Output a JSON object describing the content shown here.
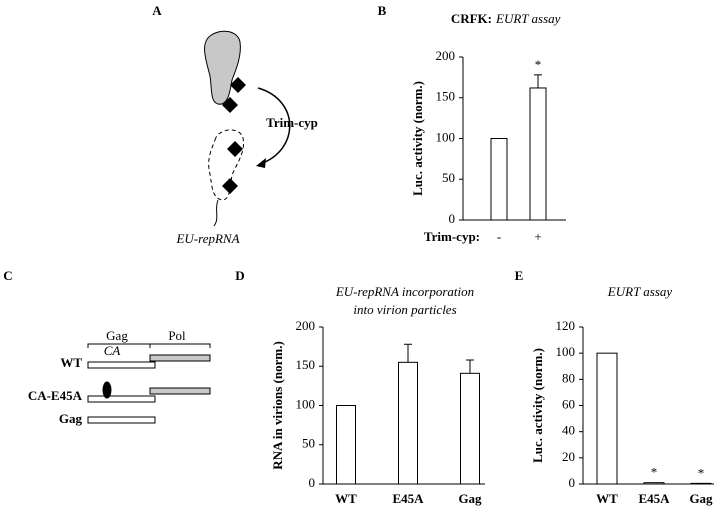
{
  "panel_labels": [
    "A",
    "B",
    "C",
    "D",
    "E"
  ],
  "diagram_a": {
    "arrow_label": "Trim-cyp",
    "rna_label": "EU-repRNA"
  },
  "diagram_c": {
    "gag_bracket": "Gag",
    "pol_bracket": "Pol",
    "ca_label": "CA",
    "rows": [
      "WT",
      "CA-E45A",
      "Gag"
    ]
  },
  "chart_data": [
    {
      "type": "bar",
      "title": "CRFK:",
      "subtitle": "EURT assay",
      "y_label": "Luc. activity (norm.)",
      "x_label": "Trim-cyp:",
      "categories": [
        "-",
        "+"
      ],
      "values": [
        100,
        162
      ],
      "errors": [
        null,
        16
      ],
      "color": "#ffffff",
      "annotations": [
        {
          "index": 1,
          "text": "*"
        }
      ],
      "ylim": [
        0,
        200
      ],
      "yticks": [
        0,
        50,
        100,
        150,
        200
      ]
    },
    {
      "type": "bar",
      "title": "EU-repRNA incorporation",
      "subtitle": "into virion particles",
      "y_label": "RNA in virions (norm.)",
      "categories": [
        "WT",
        "E45A",
        "Gag"
      ],
      "values": [
        100,
        155,
        141
      ],
      "errors": [
        null,
        23,
        17
      ],
      "color": "#ffffff",
      "ylim": [
        0,
        200
      ],
      "yticks": [
        0,
        50,
        100,
        150,
        200
      ]
    },
    {
      "type": "bar",
      "title": "EURT assay",
      "y_label": "Luc. activity (norm.)",
      "categories": [
        "WT",
        "E45A",
        "Gag"
      ],
      "values": [
        100,
        1,
        0.5
      ],
      "errors": [
        null,
        null,
        null
      ],
      "color": "#ffffff",
      "annotations": [
        {
          "index": 1,
          "text": "*"
        },
        {
          "index": 2,
          "text": "*"
        }
      ],
      "ylim": [
        0,
        120
      ],
      "yticks": [
        0,
        20,
        40,
        60,
        80,
        100,
        120
      ]
    }
  ]
}
